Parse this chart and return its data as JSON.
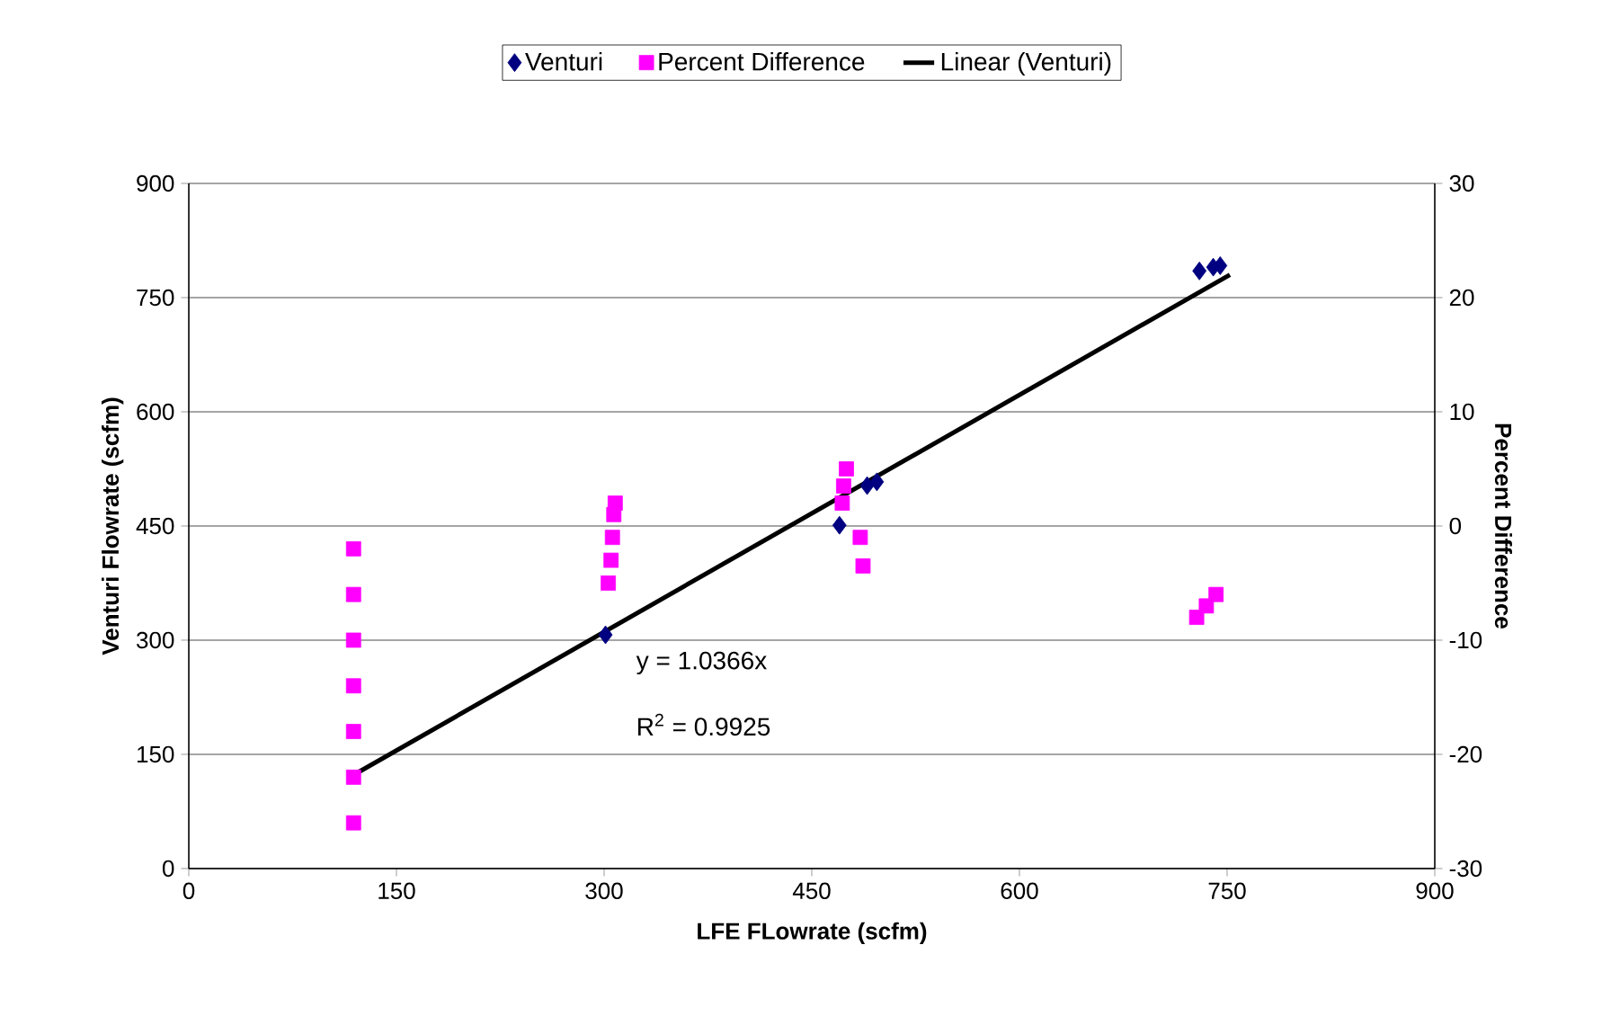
{
  "chart_data": {
    "type": "scatter",
    "xlabel": "LFE FLowrate (scfm)",
    "ylabel": "Venturi Flowrate (scfm)",
    "y2label": "Percent Difference",
    "xlim": [
      0,
      900
    ],
    "xticks": [
      0,
      150,
      300,
      450,
      600,
      750,
      900
    ],
    "ylim": [
      0,
      900
    ],
    "yticks": [
      0,
      150,
      300,
      450,
      600,
      750,
      900
    ],
    "y2lim": [
      -30,
      30
    ],
    "y2ticks": [
      -30,
      -20,
      -10,
      0,
      10,
      20,
      30
    ],
    "grid": "y",
    "legend": "top",
    "series": [
      {
        "name": "Venturi",
        "color": "#000080",
        "marker": "diamond",
        "x": [
          301,
          470,
          490,
          497,
          730,
          740,
          745
        ],
        "values": [
          307,
          451,
          503,
          508,
          785,
          790,
          792
        ]
      },
      {
        "name": "Percent Difference",
        "color": "#ff00ff",
        "marker": "square",
        "axis": "y2",
        "x": [
          119,
          119,
          119,
          119,
          119,
          119,
          119,
          303,
          305,
          306,
          307,
          308,
          472,
          473,
          475,
          485,
          487,
          728,
          735,
          742
        ],
        "values": [
          -2,
          -6,
          -10,
          -14,
          -18,
          -22,
          -26,
          -5,
          -3,
          -1,
          1,
          2,
          2,
          3.5,
          5,
          -1,
          -3.5,
          -8,
          -7,
          -6
        ]
      },
      {
        "name": "Linear (Venturi)",
        "type": "line",
        "color": "#000000",
        "marker": "none",
        "x": [
          120,
          752
        ],
        "values": [
          124,
          780
        ]
      }
    ],
    "annotations": [
      "y = 1.0366x",
      "R$^{2}$ = 0.9925"
    ]
  }
}
